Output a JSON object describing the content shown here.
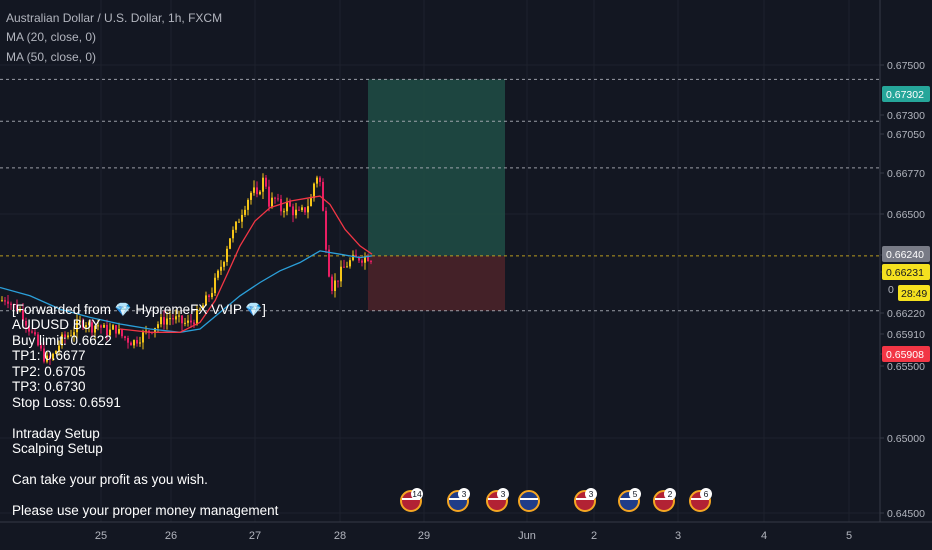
{
  "header": {
    "title": "Australian Dollar / U.S. Dollar, 1h, FXCM",
    "indicator1": "MA (20, close, 0)",
    "indicator2": "MA (50, close, 0)"
  },
  "colors": {
    "background": "#131722",
    "up": "#f5c518",
    "down": "#e91e63",
    "ma20": "#f23645",
    "ma50": "#2b9fd9",
    "profit_zone": "#1f4a44",
    "loss_zone": "#4a2229",
    "price_text": "#d1d4dc"
  },
  "chart_data": {
    "type": "candlestick",
    "symbol": "AUDUSD",
    "timeframe": "1h",
    "x_ticks": [
      "25",
      "26",
      "27",
      "28",
      "29",
      "Jun",
      "2",
      "3",
      "4",
      "5"
    ],
    "y_ticks": [
      "0.67500",
      "0.67300",
      "0.67050",
      "0.66770",
      "0.66500",
      "0.66240",
      "0.66231",
      "0.66220",
      "0.65910",
      "0.65908",
      "0.65500",
      "0.65000",
      "0.64500"
    ],
    "ylim": [
      0.6447,
      0.6778
    ],
    "price_badges": [
      {
        "label": "0.67302",
        "price": 0.67302,
        "bg": "#26a69a",
        "fg": "#ffffff"
      },
      {
        "label": "0.66240",
        "price": 0.6624,
        "bg": "#787b86",
        "fg": "#ffffff"
      },
      {
        "label": "0.66231",
        "price": 0.66231,
        "bg": "#f5e11f",
        "fg": "#131722"
      },
      {
        "label": "0.65908",
        "price": 0.65908,
        "bg": "#f23645",
        "fg": "#ffffff"
      }
    ],
    "countdown": "28:49",
    "horizontal_levels": [
      0.67302,
      0.6705,
      0.6677,
      0.6624,
      0.6591
    ],
    "position": {
      "entry": 0.6624,
      "target": 0.67302,
      "stop": 0.6591
    },
    "price_track": [
      [
        0,
        0.6597
      ],
      [
        6,
        0.6599
      ],
      [
        12,
        0.6594
      ],
      [
        18,
        0.6592
      ],
      [
        24,
        0.6586
      ],
      [
        30,
        0.6578
      ],
      [
        36,
        0.6571
      ],
      [
        42,
        0.6564
      ],
      [
        48,
        0.656
      ],
      [
        54,
        0.6566
      ],
      [
        60,
        0.6573
      ],
      [
        66,
        0.6576
      ],
      [
        72,
        0.6579
      ],
      [
        78,
        0.6583
      ],
      [
        84,
        0.6585
      ],
      [
        90,
        0.6581
      ],
      [
        96,
        0.6583
      ],
      [
        102,
        0.658
      ],
      [
        108,
        0.6578
      ],
      [
        114,
        0.6581
      ],
      [
        120,
        0.6576
      ],
      [
        126,
        0.6574
      ],
      [
        132,
        0.6572
      ],
      [
        138,
        0.6575
      ],
      [
        144,
        0.6577
      ],
      [
        150,
        0.658
      ],
      [
        156,
        0.6583
      ],
      [
        162,
        0.6585
      ],
      [
        168,
        0.6587
      ],
      [
        174,
        0.6586
      ],
      [
        180,
        0.6584
      ],
      [
        186,
        0.6583
      ],
      [
        192,
        0.6585
      ],
      [
        198,
        0.659
      ],
      [
        204,
        0.6596
      ],
      [
        210,
        0.6602
      ],
      [
        216,
        0.6611
      ],
      [
        220,
        0.6618
      ],
      [
        224,
        0.6625
      ],
      [
        228,
        0.6635
      ],
      [
        232,
        0.6638
      ],
      [
        236,
        0.6643
      ],
      [
        240,
        0.665
      ],
      [
        244,
        0.6655
      ],
      [
        248,
        0.666
      ],
      [
        252,
        0.6664
      ],
      [
        256,
        0.6658
      ],
      [
        260,
        0.6668
      ],
      [
        264,
        0.6671
      ],
      [
        268,
        0.6656
      ],
      [
        274,
        0.6658
      ],
      [
        280,
        0.6652
      ],
      [
        286,
        0.6655
      ],
      [
        292,
        0.6651
      ],
      [
        298,
        0.6649
      ],
      [
        304,
        0.6652
      ],
      [
        310,
        0.6658
      ],
      [
        314,
        0.6671
      ],
      [
        318,
        0.6674
      ],
      [
        322,
        0.665
      ],
      [
        326,
        0.6625
      ],
      [
        330,
        0.6605
      ],
      [
        334,
        0.6608
      ],
      [
        338,
        0.6612
      ],
      [
        342,
        0.6616
      ],
      [
        346,
        0.6619
      ],
      [
        350,
        0.6621
      ],
      [
        354,
        0.6622
      ],
      [
        358,
        0.6623
      ],
      [
        362,
        0.6623
      ],
      [
        366,
        0.6624
      ],
      [
        370,
        0.6623
      ]
    ],
    "ma20_track": [
      [
        120,
        0.658
      ],
      [
        150,
        0.6578
      ],
      [
        180,
        0.6578
      ],
      [
        200,
        0.6584
      ],
      [
        215,
        0.6597
      ],
      [
        228,
        0.6614
      ],
      [
        240,
        0.663
      ],
      [
        255,
        0.6645
      ],
      [
        270,
        0.6653
      ],
      [
        290,
        0.6657
      ],
      [
        310,
        0.6659
      ],
      [
        320,
        0.666
      ],
      [
        330,
        0.6655
      ],
      [
        345,
        0.664
      ],
      [
        360,
        0.663
      ],
      [
        372,
        0.6625
      ]
    ],
    "ma50_track": [
      [
        0,
        0.6605
      ],
      [
        30,
        0.66
      ],
      [
        60,
        0.6592
      ],
      [
        90,
        0.6587
      ],
      [
        120,
        0.6583
      ],
      [
        150,
        0.658
      ],
      [
        180,
        0.6578
      ],
      [
        200,
        0.658
      ],
      [
        220,
        0.659
      ],
      [
        240,
        0.66
      ],
      [
        260,
        0.6608
      ],
      [
        280,
        0.6615
      ],
      [
        300,
        0.662
      ],
      [
        320,
        0.6627
      ],
      [
        340,
        0.6625
      ],
      [
        360,
        0.6623
      ],
      [
        372,
        0.6624
      ]
    ]
  },
  "note": {
    "lines": [
      "[Forwarded from 💎 HypremeFX VVIP 💎]",
      "AUDUSD BUY",
      "Buy limit: 0.6622",
      "TP1: 0.6677",
      "TP2: 0.6705",
      "TP3: 0.6730",
      "Stop Loss: 0.6591",
      "",
      "Intraday Setup",
      "Scalping Setup",
      "",
      "Can take your profit as you wish.",
      "",
      "Please use your proper money management"
    ]
  },
  "events": [
    {
      "flag": "us",
      "label": "14"
    },
    {
      "flag": "au",
      "label": "3"
    },
    {
      "flag": "us",
      "label": "3"
    },
    {
      "flag": "au",
      "label": ""
    },
    {
      "flag": "us",
      "label": "3"
    },
    {
      "flag": "au",
      "label": "5"
    },
    {
      "flag": "us",
      "label": "2"
    },
    {
      "flag": "us",
      "label": "6"
    }
  ]
}
